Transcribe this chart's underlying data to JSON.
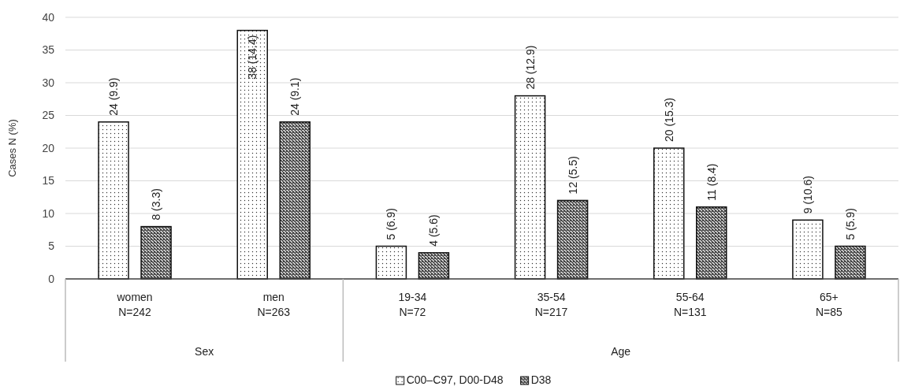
{
  "chart_data": {
    "type": "bar",
    "ylabel": "Cases N (%)",
    "categories": [
      "women\nN=242",
      "men\nN=263",
      "19-34\nN=72",
      "35-54\nN=217",
      "55-64\nN=131",
      "65+\nN=85"
    ],
    "series": [
      {
        "name": "C00–C97, D00-D48",
        "color": "#ffffff",
        "values": [
          24,
          38,
          5,
          28,
          20,
          9
        ],
        "value_labels": [
          "24 (9.9)",
          "38 (14.4)",
          "5 (6.9)",
          "28 (12.9)",
          "20 (15.3)",
          "9 (10.6)"
        ]
      },
      {
        "name": "D38",
        "color": "#404040",
        "values": [
          8,
          24,
          4,
          12,
          11,
          5
        ],
        "value_labels": [
          "8 (3.3)",
          "24 (9.1)",
          "4 (5.6)",
          "12 (5.5)",
          "11 (8.4)",
          "5 (5.9)"
        ]
      }
    ],
    "ylim": [
      0,
      40
    ],
    "yticks": [
      0,
      5,
      10,
      15,
      20,
      25,
      30,
      35,
      40
    ],
    "grid": "y",
    "legend": "bottom",
    "annotations": [
      "Sex",
      "Age"
    ]
  }
}
